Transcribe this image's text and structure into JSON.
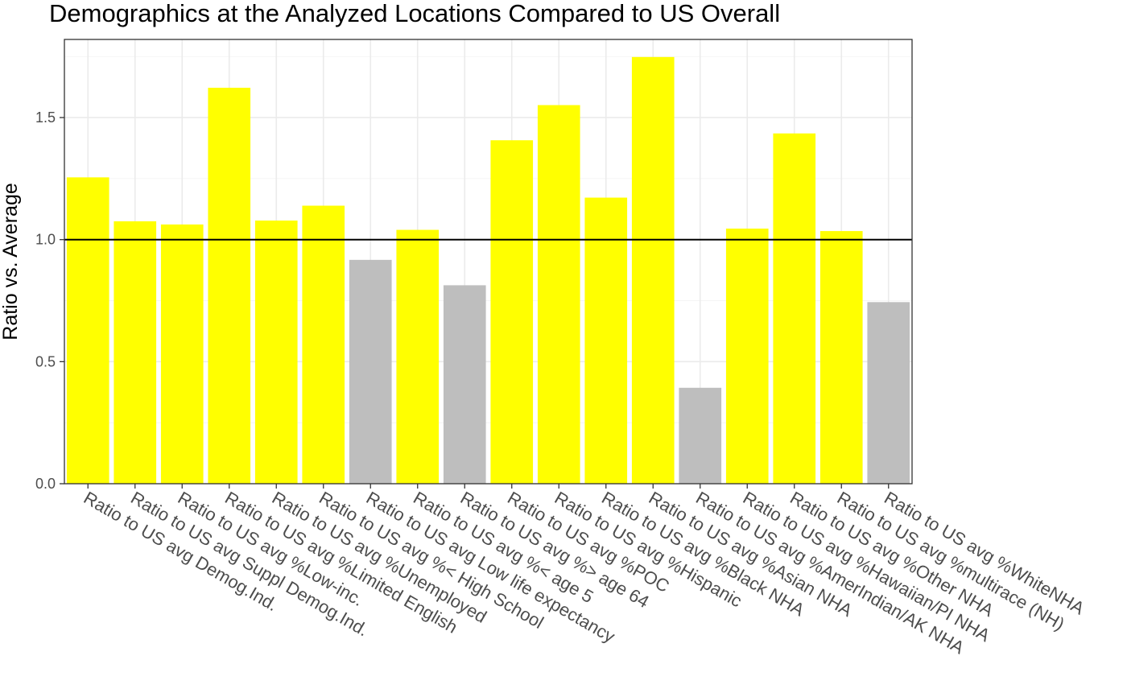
{
  "chart_data": {
    "type": "bar",
    "title": "Demographics at the Analyzed Locations Compared to US Overall",
    "xlabel": "",
    "ylabel": "Ratio vs. Average",
    "ylim": [
      0,
      1.82
    ],
    "yticks": [
      "0.0",
      "0.5",
      "1.0",
      "1.5"
    ],
    "reference_line": 1.0,
    "grid": true,
    "colors": {
      "above": "#ffff00",
      "below": "#bebebe",
      "reference": "#000000"
    },
    "categories": [
      "Ratio to US avg Demog.Ind.",
      "Ratio to US avg Suppl Demog.Ind.",
      "Ratio to US avg %Low-inc.",
      "Ratio to US avg %Limited English",
      "Ratio to US avg %Unemployed",
      "Ratio to US avg %< High School",
      "Ratio to US avg Low life expectancy",
      "Ratio to US avg %< age 5",
      "Ratio to US avg %> age 64",
      "Ratio to US avg %POC",
      "Ratio to US avg %Hispanic",
      "Ratio to US avg %Black NHA",
      "Ratio to US avg %Asian NHA",
      "Ratio to US avg %AmerIndian/AK NHA",
      "Ratio to US avg %Hawaiian/PI NHA",
      "Ratio to US avg %Other NHA",
      "Ratio to US avg %multirace (NH)",
      "Ratio to US avg %WhiteNHA"
    ],
    "values": [
      1.255,
      1.075,
      1.062,
      1.622,
      1.078,
      1.139,
      0.917,
      1.04,
      0.813,
      1.407,
      1.551,
      1.172,
      1.748,
      0.393,
      1.045,
      1.435,
      1.035,
      0.744
    ]
  }
}
